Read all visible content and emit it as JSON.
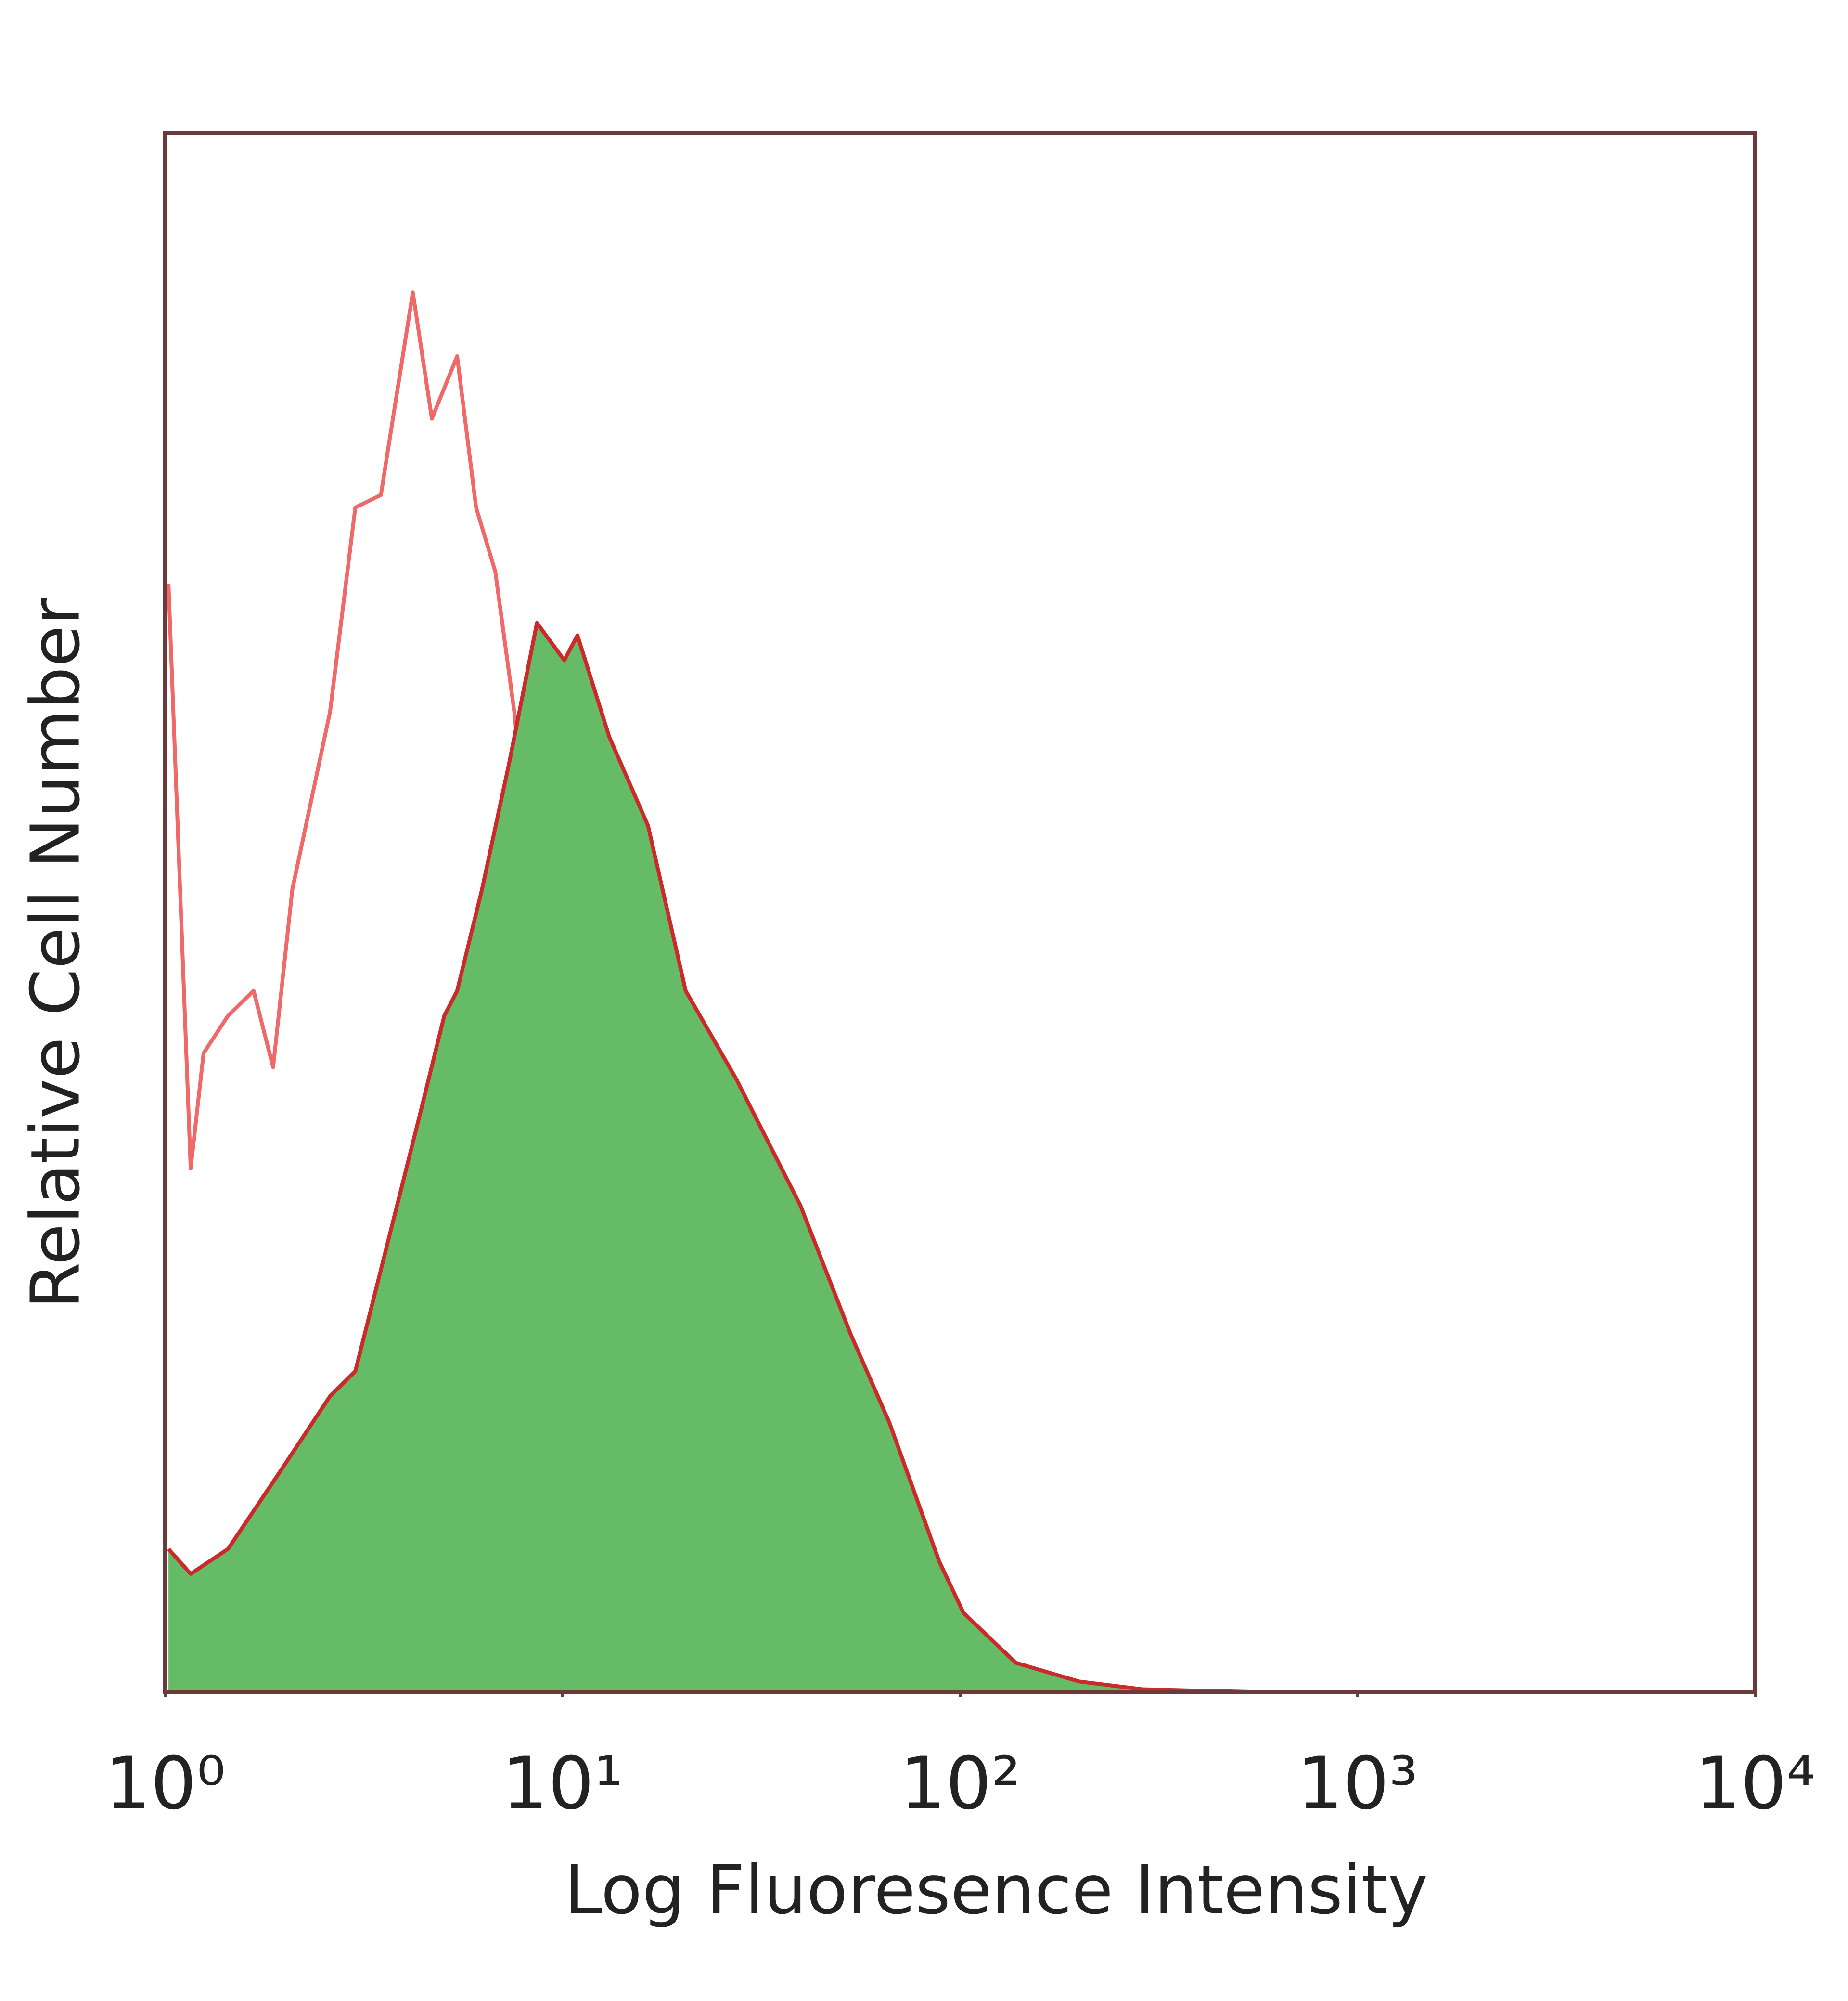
{
  "chart_data": {
    "type": "line",
    "xlabel": "Log Fluoresence Intensity",
    "ylabel": "Relative Cell Number",
    "xscale": "log",
    "xlim": [
      1,
      10000
    ],
    "xticks": [
      {
        "value": 1,
        "label": "10⁰"
      },
      {
        "value": 10,
        "label": "10¹"
      },
      {
        "value": 100,
        "label": "10²"
      },
      {
        "value": 1000,
        "label": "10³"
      },
      {
        "value": 10000,
        "label": "10⁴"
      }
    ],
    "ylim": [
      0,
      100
    ],
    "series": [
      {
        "color": "#f06868",
        "x": [
          1.02,
          1.16,
          1.25,
          1.44,
          1.67,
          1.87,
          2.09,
          2.6,
          3.01,
          3.49,
          4.2,
          4.69,
          5.43,
          6.06,
          6.77,
          7.56,
          8.14,
          9.09,
          10.5,
          12.2,
          14.1,
          16.4,
          19.0,
          31.8
        ],
        "values": [
          71.1,
          33.6,
          41.0,
          43.4,
          45.0,
          40.1,
          51.5,
          62.9,
          76.0,
          76.8,
          89.8,
          81.7,
          85.7,
          76.0,
          71.9,
          62.9,
          54.8,
          39.3,
          27.1,
          14.9,
          5.1,
          1.1,
          0.2,
          0
        ]
      },
      {
        "color": "#cc2a2a",
        "fill": "#66bb66",
        "x": [
          1.02,
          1.16,
          1.44,
          1.94,
          2.6,
          3.01,
          3.49,
          4.36,
          5.04,
          5.43,
          6.27,
          7.35,
          8.62,
          10.1,
          10.9,
          13.1,
          16.4,
          20.4,
          27.4,
          39.7,
          53.0,
          66.4,
          88.6,
          102,
          138,
          199,
          287,
          601
        ],
        "values": [
          9.2,
          7.6,
          9.2,
          14.1,
          19.0,
          20.6,
          27.1,
          36.9,
          43.4,
          45.0,
          51.5,
          59.7,
          68.6,
          66.2,
          67.8,
          61.3,
          55.6,
          45.0,
          39.3,
          31.2,
          23.0,
          17.3,
          8.4,
          5.1,
          1.9,
          0.7,
          0.2,
          0
        ]
      }
    ]
  }
}
